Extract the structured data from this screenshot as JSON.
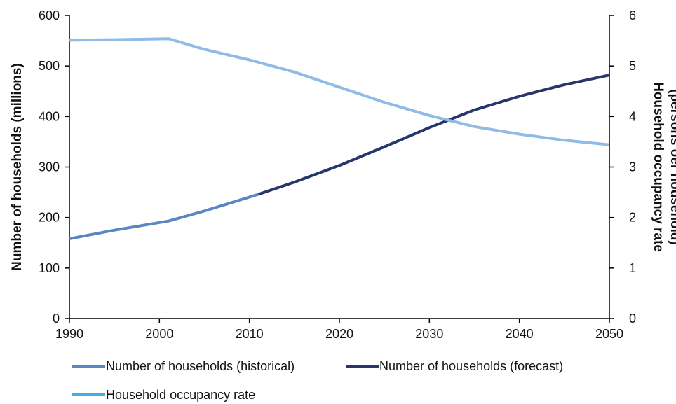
{
  "chart_data": {
    "type": "line",
    "title": "",
    "x": [
      1990,
      1995,
      2000,
      2001,
      2005,
      2010,
      2011,
      2015,
      2020,
      2025,
      2030,
      2035,
      2040,
      2045,
      2050
    ],
    "xlim": [
      1990,
      2050
    ],
    "x_ticks": [
      "1990",
      "2000",
      "2010",
      "2020",
      "2030",
      "2040",
      "2050"
    ],
    "ylabel": "Number of households (millions)",
    "ylim": [
      0,
      600
    ],
    "y_ticks": [
      "0",
      "100",
      "200",
      "300",
      "400",
      "500",
      "600"
    ],
    "y2label_lines": [
      "Household occupancy rate",
      "(persons oer household)"
    ],
    "y2lim": [
      0,
      6
    ],
    "y2_ticks": [
      "0",
      "1",
      "2",
      "3",
      "4",
      "5",
      "6"
    ],
    "grid": false,
    "legend_position": "bottom",
    "series": [
      {
        "name": "Number of households (historical)",
        "axis": "left",
        "color": "#5b86c4",
        "points": [
          [
            1990,
            158
          ],
          [
            1995,
            175
          ],
          [
            2001,
            193
          ],
          [
            2005,
            213
          ],
          [
            2011,
            246
          ]
        ]
      },
      {
        "name": "Number of households (forecast)",
        "axis": "left",
        "color": "#27376b",
        "points": [
          [
            2011,
            246
          ],
          [
            2015,
            270
          ],
          [
            2020,
            303
          ],
          [
            2025,
            340
          ],
          [
            2030,
            378
          ],
          [
            2035,
            413
          ],
          [
            2040,
            440
          ],
          [
            2045,
            463
          ],
          [
            2050,
            482
          ]
        ]
      },
      {
        "name": "Household occupancy rate",
        "axis": "right",
        "color": "#8fbbe6",
        "legend_color": "#41b0e4",
        "points": [
          [
            1990,
            5.51
          ],
          [
            1995,
            5.52
          ],
          [
            2001,
            5.54
          ],
          [
            2005,
            5.33
          ],
          [
            2010,
            5.12
          ],
          [
            2015,
            4.88
          ],
          [
            2020,
            4.58
          ],
          [
            2025,
            4.28
          ],
          [
            2030,
            4.02
          ],
          [
            2035,
            3.8
          ],
          [
            2040,
            3.65
          ],
          [
            2045,
            3.53
          ],
          [
            2050,
            3.44
          ]
        ]
      }
    ]
  }
}
